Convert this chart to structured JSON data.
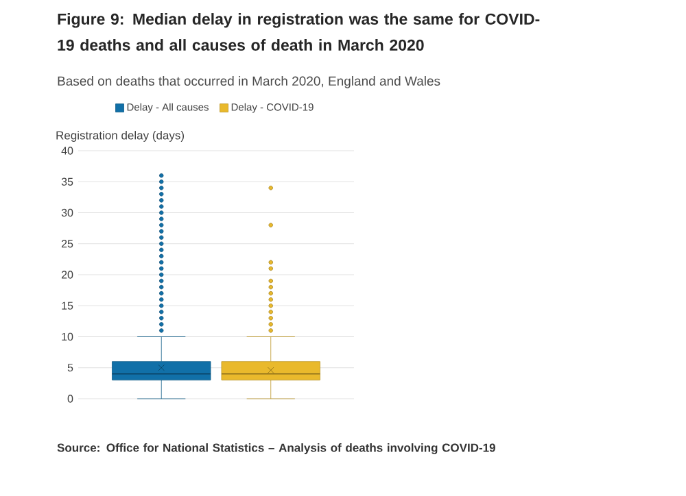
{
  "chart_data": {
    "type": "box",
    "title": "Figure 9: Median delay in registration was the same for COVID-19 deaths and all causes of death in March 2020",
    "subtitle": "Based on deaths that occurred in March 2020, England and Wales",
    "ylabel": "Registration delay (days)",
    "annotations": [
      "Source: Office for National Statistics – Analysis of deaths involving COVID-19"
    ],
    "categories": [
      null
    ],
    "ylim": [
      0,
      40
    ],
    "yticks": [
      0,
      5,
      10,
      15,
      20,
      25,
      30,
      35,
      40
    ],
    "grid": "y",
    "legend": "top",
    "series": [
      {
        "name": "Delay - All causes",
        "color": "#1170a8",
        "boxes": [
          {
            "low": 0,
            "q1": 3,
            "median": 4,
            "q3": 6,
            "high": 10,
            "mean": 5,
            "outliers": [
              11,
              12,
              13,
              14,
              15,
              16,
              17,
              18,
              19,
              20,
              21,
              22,
              23,
              24,
              25,
              26,
              27,
              28,
              29,
              30,
              31,
              32,
              33,
              34,
              35,
              36
            ]
          }
        ]
      },
      {
        "name": "Delay - COVID-19",
        "color": "#e9b92c",
        "boxes": [
          {
            "low": 0,
            "q1": 3,
            "median": 4,
            "q3": 6,
            "high": 10,
            "mean": 4.6,
            "outliers": [
              11,
              12,
              13,
              14,
              15,
              16,
              17,
              18,
              19,
              21,
              22,
              28,
              34
            ]
          }
        ]
      }
    ]
  }
}
